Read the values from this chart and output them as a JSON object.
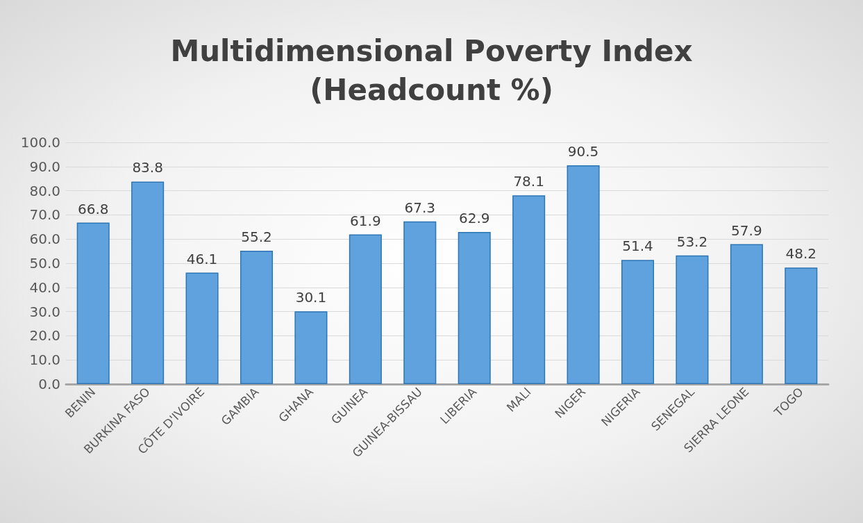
{
  "chart_data": {
    "type": "bar",
    "title": "Multidimensional Poverty Index\n(Headcount %)",
    "categories": [
      "BENIN",
      "BURKINA FASO",
      "CÔTE D'IVOIRE",
      "GAMBIA",
      "GHANA",
      "GUINEA",
      "GUINEA-BISSAU",
      "LIBERIA",
      "MALI",
      "NIGER",
      "NIGERIA",
      "SENEGAL",
      "SIERRA LEONE",
      "TOGO"
    ],
    "values": [
      66.8,
      83.8,
      46.1,
      55.2,
      30.1,
      61.9,
      67.3,
      62.9,
      78.1,
      90.5,
      51.4,
      53.2,
      57.9,
      48.2
    ],
    "color": "#5fa2dd",
    "ylim": [
      0,
      100
    ],
    "yticks": [
      {
        "value": 0,
        "label": "0.0"
      },
      {
        "value": 10,
        "label": "10.0"
      },
      {
        "value": 20,
        "label": "20.0"
      },
      {
        "value": 30,
        "label": "30.0"
      },
      {
        "value": 40,
        "label": "40.0"
      },
      {
        "value": 50,
        "label": "50.0"
      },
      {
        "value": 60,
        "label": "60.0"
      },
      {
        "value": 70,
        "label": "70.0"
      },
      {
        "value": 80,
        "label": "80.0"
      },
      {
        "value": 90,
        "label": "90.0"
      },
      {
        "value": 100,
        "label": "100.0"
      }
    ],
    "grid": "y",
    "data_labels": true
  }
}
